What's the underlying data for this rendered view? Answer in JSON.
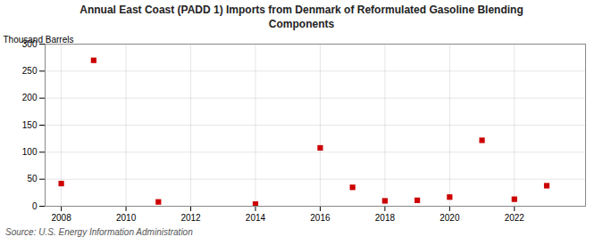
{
  "chart_data": {
    "type": "scatter",
    "title": "Annual East Coast (PADD 1) Imports from Denmark of Reformulated Gasoline Blending\nComponents",
    "ylabel": "Thousand Barrels",
    "source": "Source: U.S. Energy Information Administration",
    "x": [
      2008,
      2009,
      2011,
      2014,
      2016,
      2017,
      2018,
      2019,
      2020,
      2021,
      2022,
      2023
    ],
    "values": [
      42,
      270,
      8,
      4,
      108,
      35,
      10,
      11,
      17,
      122,
      13,
      38
    ],
    "color": "#cc0000",
    "marker": "square",
    "xlim": [
      2007.5,
      2024.2
    ],
    "ylim": [
      0,
      300
    ],
    "xticks": [
      2008,
      2010,
      2012,
      2014,
      2016,
      2018,
      2020,
      2022
    ],
    "yticks": [
      0,
      50,
      100,
      150,
      200,
      250,
      300
    ],
    "grid": true
  }
}
